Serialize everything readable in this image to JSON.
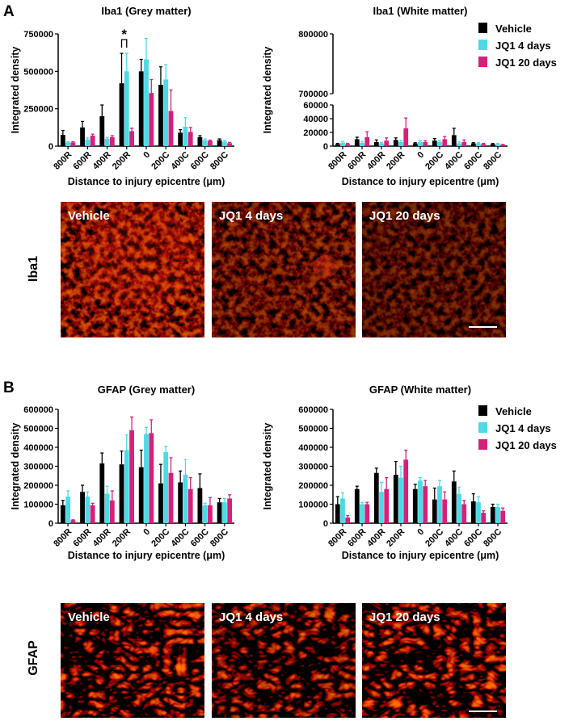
{
  "panels": [
    "A",
    "B"
  ],
  "images": {
    "rows": [
      {
        "label": "Iba1",
        "panels": [
          "Vehicle",
          "JQ1 4 days",
          "JQ1 20 days"
        ]
      },
      {
        "label": "GFAP",
        "panels": [
          "Vehicle",
          "JQ1 4 days",
          "JQ1 20 days"
        ]
      }
    ]
  },
  "chart_data": [
    {
      "type": "bar",
      "title": "Iba1 (Grey matter)",
      "x_label": "Distance to injury epicentre (μm)",
      "y_label": "Integrated density",
      "legend": "none",
      "categories": [
        "800R",
        "600R",
        "400R",
        "200R",
        "0",
        "200C",
        "400C",
        "600C",
        "800C"
      ],
      "series": [
        {
          "color": "#000000",
          "values": [
            75000,
            125000,
            200000,
            420000,
            500000,
            410000,
            90000,
            60000,
            40000
          ],
          "errors": [
            30000,
            40000,
            75000,
            200000,
            80000,
            120000,
            20000,
            10000,
            8000
          ]
        },
        {
          "color": "#4dd9e6",
          "values": [
            25000,
            45000,
            50000,
            500000,
            580000,
            445000,
            130000,
            40000,
            30000
          ],
          "errors": [
            5000,
            10000,
            8000,
            120000,
            140000,
            100000,
            60000,
            8000,
            8000
          ]
        },
        {
          "color": "#d6207a",
          "values": [
            25000,
            70000,
            60000,
            100000,
            355000,
            235000,
            95000,
            35000,
            20000
          ],
          "errors": [
            5000,
            10000,
            10000,
            20000,
            90000,
            140000,
            30000,
            5000,
            5000
          ]
        }
      ],
      "annotation": "*",
      "ylim": [
        0,
        750000
      ],
      "yticks": [
        0,
        250000,
        500000,
        750000
      ]
    },
    {
      "type": "bar",
      "title": "Iba1 (White matter)",
      "x_label": "Distance to injury epicentre (μm)",
      "y_label": "Integrated density",
      "legend": "right",
      "categories": [
        "800R",
        "600R",
        "400R",
        "200R",
        "0",
        "200C",
        "400C",
        "600C",
        "800C"
      ],
      "series": [
        {
          "name": "Vehicle",
          "color": "#000000",
          "values": [
            3000,
            10000,
            6000,
            9000,
            4000,
            8000,
            16000,
            4000,
            3000
          ],
          "errors": [
            1000,
            3000,
            3000,
            3000,
            1000,
            3000,
            10000,
            1000,
            1000
          ]
        },
        {
          "name": "JQ1 4 days",
          "color": "#4dd9e6",
          "values": [
            5000,
            5000,
            4000,
            6000,
            6000,
            6000,
            4000,
            4000,
            3000
          ],
          "errors": [
            2000,
            2000,
            1000,
            2000,
            2000,
            2000,
            2000,
            1000,
            1000
          ]
        },
        {
          "name": "JQ1 20 days",
          "color": "#d6207a",
          "values": [
            3000,
            13000,
            8000,
            26000,
            6000,
            10000,
            6000,
            3000,
            2000
          ],
          "errors": [
            1000,
            8000,
            4000,
            15000,
            2000,
            4000,
            3000,
            1000,
            500
          ]
        }
      ],
      "ylim": [
        0,
        800000
      ],
      "axis_break": [
        60000,
        700000
      ],
      "yticks": [
        0,
        20000,
        40000,
        60000,
        700000,
        800000
      ]
    },
    {
      "type": "bar",
      "title": "GFAP (Grey matter)",
      "x_label": "Distance to injury epicentre (μm)",
      "y_label": "Integrated density",
      "legend": "none",
      "categories": [
        "800R",
        "600R",
        "400R",
        "200R",
        "0",
        "200C",
        "400C",
        "600C",
        "800C"
      ],
      "series": [
        {
          "color": "#000000",
          "values": [
            95000,
            165000,
            315000,
            310000,
            295000,
            210000,
            215000,
            185000,
            110000
          ],
          "errors": [
            25000,
            35000,
            55000,
            70000,
            90000,
            100000,
            60000,
            75000,
            20000
          ]
        },
        {
          "color": "#4dd9e6",
          "values": [
            140000,
            140000,
            155000,
            385000,
            470000,
            375000,
            255000,
            95000,
            110000
          ],
          "errors": [
            30000,
            25000,
            40000,
            80000,
            35000,
            30000,
            80000,
            10000,
            20000
          ]
        },
        {
          "color": "#d6207a",
          "values": [
            15000,
            95000,
            120000,
            490000,
            475000,
            265000,
            180000,
            95000,
            130000
          ],
          "errors": [
            3000,
            10000,
            50000,
            70000,
            70000,
            80000,
            60000,
            40000,
            20000
          ]
        }
      ],
      "ylim": [
        0,
        600000
      ],
      "yticks": [
        0,
        100000,
        200000,
        300000,
        400000,
        500000,
        600000
      ]
    },
    {
      "type": "bar",
      "title": "GFAP (White matter)",
      "x_label": "Distance to injury epicentre (μm)",
      "y_label": "Integrated density",
      "legend": "right",
      "categories": [
        "800R",
        "600R",
        "400R",
        "200R",
        "0",
        "200C",
        "400C",
        "600C",
        "800C"
      ],
      "series": [
        {
          "name": "Vehicle",
          "color": "#000000",
          "values": [
            100000,
            180000,
            265000,
            255000,
            180000,
            125000,
            220000,
            115000,
            85000
          ],
          "errors": [
            40000,
            15000,
            25000,
            70000,
            25000,
            60000,
            55000,
            40000,
            15000
          ]
        },
        {
          "name": "JQ1 4 days",
          "color": "#4dd9e6",
          "values": [
            130000,
            100000,
            165000,
            240000,
            225000,
            195000,
            155000,
            110000,
            85000
          ],
          "errors": [
            30000,
            10000,
            50000,
            60000,
            15000,
            30000,
            35000,
            30000,
            15000
          ]
        },
        {
          "name": "JQ1 20 days",
          "color": "#d6207a",
          "values": [
            30000,
            100000,
            180000,
            335000,
            195000,
            125000,
            100000,
            55000,
            65000
          ],
          "errors": [
            10000,
            10000,
            60000,
            50000,
            30000,
            40000,
            20000,
            10000,
            15000
          ]
        }
      ],
      "ylim": [
        0,
        600000
      ],
      "yticks": [
        0,
        100000,
        200000,
        300000,
        400000,
        500000,
        600000
      ]
    }
  ]
}
